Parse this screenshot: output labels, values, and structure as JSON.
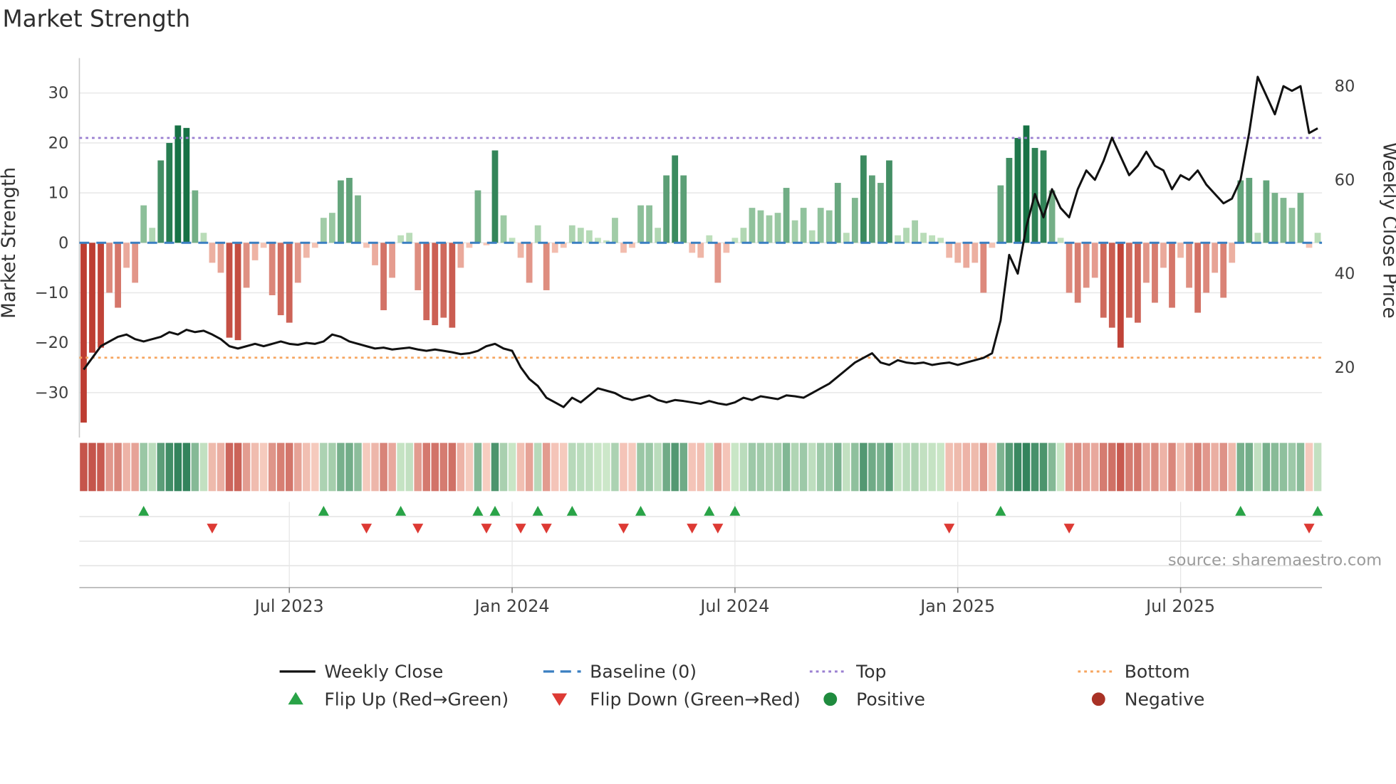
{
  "title": "Market Strength",
  "source": "source: sharemaestro.com",
  "left_axis": {
    "label": "Market Strength",
    "ticks": [
      30,
      20,
      10,
      0,
      -10,
      -20,
      -30
    ]
  },
  "right_axis": {
    "label": "Weekly Close Price",
    "ticks": [
      80,
      60,
      40,
      20
    ]
  },
  "x_axis": {
    "ticks": [
      {
        "label": "Jul 2023",
        "week": 24
      },
      {
        "label": "Jan 2024",
        "week": 50
      },
      {
        "label": "Jul 2024",
        "week": 76
      },
      {
        "label": "Jan 2025",
        "week": 102
      },
      {
        "label": "Jul 2025",
        "week": 128
      }
    ]
  },
  "legend": {
    "weekly_close": "Weekly Close",
    "baseline": "Baseline (0)",
    "top": "Top",
    "bottom": "Bottom",
    "flip_up": "Flip Up (Red→Green)",
    "flip_down": "Flip Down (Green→Red)",
    "positive": "Positive",
    "negative": "Negative"
  },
  "colors": {
    "price_line": "#111111",
    "baseline": "#3a7fc1",
    "top": "#9a7fd1",
    "bottom": "#f6a55f",
    "flip_up": "#29a347",
    "flip_down": "#dd3a34",
    "positive_dot": "#1f8b3e",
    "negative_dot": "#a93226",
    "bar_pos_light": "#c9e7c4",
    "bar_pos_dark": "#177245",
    "bar_neg_light": "#f7c9ba",
    "bar_neg_dark": "#bd3d32",
    "grid": "#e8e8e8",
    "spine": "#c9c9c9"
  },
  "chart_data": {
    "type": "bar",
    "overlay": "line",
    "title": "Market Strength",
    "ylabel_left": "Market Strength",
    "ylabel_right": "Weekly Close Price",
    "top_threshold": 21,
    "bottom_threshold": -23,
    "baseline_value": 0,
    "ylim_left": [
      -39,
      37
    ],
    "ylim_right": [
      5,
      86
    ],
    "weeks_span": "weekly bars, ~Jan 2023 to ~Oct 2025",
    "strength": [
      -36,
      -22,
      -21,
      -10,
      -13,
      -5,
      -8,
      7.5,
      3,
      16.5,
      20,
      23.5,
      23,
      10.5,
      2,
      -4,
      -6,
      -19,
      -19.5,
      -9,
      -3.5,
      -1,
      -10.5,
      -14.5,
      -16,
      -8,
      -3,
      -1,
      5,
      6,
      12.5,
      13,
      9.5,
      -1,
      -4.5,
      -13.5,
      -7,
      1.5,
      2,
      -9.5,
      -15.5,
      -16.5,
      -15,
      -17,
      -5,
      -1,
      10.5,
      -0.5,
      18.5,
      5.5,
      1,
      -3,
      -8,
      3.5,
      -9.5,
      -2,
      -1,
      3.5,
      3,
      2.5,
      1,
      0.5,
      5,
      -2,
      -1,
      7.5,
      7.5,
      3,
      13.5,
      17.5,
      13.5,
      -2,
      -3,
      1.5,
      -8,
      -2,
      1,
      3,
      7,
      6.5,
      5.5,
      6,
      11,
      4.5,
      7,
      2.5,
      7,
      6.5,
      12,
      2,
      9,
      17.5,
      13.5,
      12,
      16.5,
      1.5,
      3,
      4.5,
      2,
      1.5,
      1,
      -3,
      -4,
      -5,
      -4,
      -10,
      -1,
      11.5,
      17,
      21,
      23.5,
      19,
      18.5,
      10.5,
      1,
      -10,
      -12,
      -9,
      -7,
      -15,
      -17,
      -21,
      -15,
      -16,
      -8,
      -12,
      -5,
      -13,
      -3,
      -9,
      -14,
      -10,
      -6,
      -11,
      -4,
      12.5,
      13,
      2,
      12.5,
      10,
      9,
      7,
      10,
      -1,
      2
    ],
    "price": [
      19.5,
      22,
      24.5,
      25.5,
      26.5,
      27,
      26,
      25.5,
      26,
      26.5,
      27.5,
      27,
      28,
      27.5,
      27.8,
      27,
      26,
      24.5,
      24,
      24.5,
      25,
      24.5,
      25,
      25.5,
      25,
      24.8,
      25.2,
      25,
      25.5,
      27,
      26.5,
      25.5,
      25,
      24.5,
      24,
      24.2,
      23.8,
      24,
      24.2,
      23.8,
      23.5,
      23.8,
      23.5,
      23.2,
      22.8,
      23,
      23.5,
      24.5,
      25,
      24,
      23.5,
      20,
      17.5,
      16,
      13.5,
      12.5,
      11.5,
      13.5,
      12.5,
      14,
      15.5,
      15,
      14.5,
      13.5,
      13,
      13.5,
      14,
      13,
      12.5,
      13,
      12.8,
      12.5,
      12.2,
      12.8,
      12.3,
      12,
      12.5,
      13.5,
      13,
      13.8,
      13.5,
      13.2,
      14,
      13.8,
      13.5,
      14.5,
      15.5,
      16.5,
      18,
      19.5,
      21,
      22,
      23,
      21,
      20.5,
      21.5,
      21,
      20.8,
      21,
      20.5,
      20.8,
      21,
      20.5,
      21,
      21.5,
      22,
      23,
      30,
      44,
      40,
      50,
      57,
      52,
      58,
      54,
      52,
      58,
      62,
      60,
      64,
      69,
      65,
      61,
      63,
      66,
      63,
      62,
      58,
      61,
      60,
      62,
      59,
      57,
      55,
      56,
      60,
      70,
      82,
      78,
      74,
      80,
      79,
      80,
      70,
      71
    ],
    "flip_up_weeks": [
      7,
      28,
      37,
      46,
      48,
      53,
      57,
      65,
      73,
      76,
      107,
      135,
      144
    ],
    "flip_down_weeks": [
      15,
      33,
      39,
      47,
      51,
      54,
      63,
      71,
      74,
      101,
      115,
      143
    ]
  }
}
